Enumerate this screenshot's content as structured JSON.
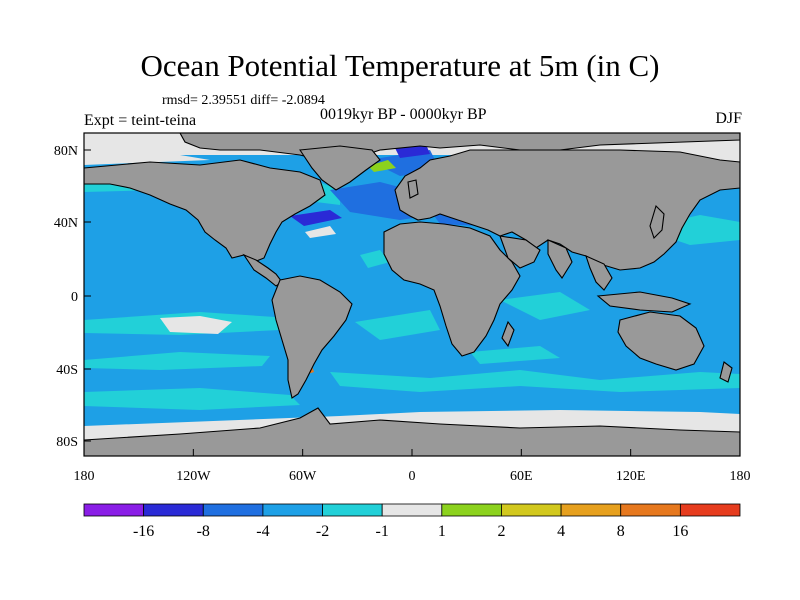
{
  "title": "Ocean Potential Temperature at 5m (in C)",
  "stats_line": "rmsd= 2.39551 diff= -2.0894",
  "left_label": "Expt = teint-teina",
  "center_label": "0019kyr BP - 0000kyr BP",
  "right_label": "DJF",
  "lat_ticks": [
    "80N",
    "40N",
    "0",
    "40S",
    "80S"
  ],
  "lon_ticks": [
    "180",
    "120W",
    "60W",
    "0",
    "60E",
    "120E",
    "180"
  ],
  "colorbar": {
    "labels": [
      "-16",
      "-8",
      "-4",
      "-2",
      "-1",
      "1",
      "2",
      "4",
      "8",
      "16"
    ],
    "colors": [
      "#8a1ee6",
      "#2a2ad6",
      "#1f6fe0",
      "#1ea0e6",
      "#22d0d8",
      "#e6e6e6",
      "#8cd21e",
      "#d2c81e",
      "#e6a01e",
      "#e6781e",
      "#e63c1e"
    ]
  },
  "colors": {
    "land": "#999999",
    "ocean_base": "#1ea0e6",
    "cyan": "#22d0d8",
    "neutral": "#e6e6e6",
    "blue_dark": "#2a2ad6",
    "blue_mid": "#1f6fe0",
    "green": "#8cd21e",
    "orange": "#e6781e"
  }
}
